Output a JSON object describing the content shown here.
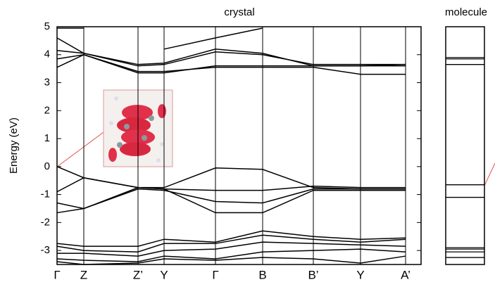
{
  "chart_data": [
    {
      "type": "line",
      "title": "crystal",
      "ylabel": "Energy (eV)",
      "color": "#000000",
      "x": [
        0,
        38,
        115,
        152,
        225,
        292,
        364,
        431,
        495
      ],
      "xlim": [
        0,
        517
      ],
      "xticks": [
        {
          "value": 0,
          "label": "Γ"
        },
        {
          "value": 38,
          "label": "Z"
        },
        {
          "value": 115,
          "label": "Z’"
        },
        {
          "value": 152,
          "label": "Y"
        },
        {
          "value": 225,
          "label": "Γ"
        },
        {
          "value": 292,
          "label": "B"
        },
        {
          "value": 364,
          "label": "B’"
        },
        {
          "value": 431,
          "label": "Y"
        },
        {
          "value": 495,
          "label": "A’"
        }
      ],
      "ylim": [
        -3.5,
        5
      ],
      "yticks": [
        -3,
        -2,
        -1,
        0,
        1,
        2,
        3,
        4,
        5
      ],
      "series": [
        {
          "values": [
            3.55,
            4.0,
            3.35,
            3.35,
            3.6,
            3.6,
            3.6,
            3.6,
            3.65
          ]
        },
        {
          "values": [
            3.85,
            4.0,
            3.4,
            3.4,
            3.55,
            3.55,
            3.55,
            3.3,
            3.3
          ]
        },
        {
          "values": [
            4.15,
            4.05,
            3.6,
            3.65,
            4.1,
            4.0,
            3.65,
            3.65,
            3.65
          ]
        },
        {
          "values": [
            4.6,
            4.05,
            3.65,
            3.7,
            4.2,
            4.05,
            3.6,
            3.6,
            3.6
          ]
        },
        {
          "values": [
            4.95,
            4.95,
            null,
            4.2,
            4.6,
            4.95,
            null,
            null,
            null
          ]
        },
        {
          "values": [
            0,
            -0.4,
            -0.75,
            -0.75,
            -0.05,
            -0.1,
            -0.75,
            -0.8,
            -0.8
          ]
        },
        {
          "values": [
            -0.9,
            -0.4,
            -0.75,
            -0.8,
            -0.85,
            -0.85,
            -0.7,
            -0.75,
            -0.75
          ]
        },
        {
          "values": [
            -1.3,
            -1.5,
            -0.8,
            -0.85,
            -1.25,
            -1.3,
            -0.8,
            -0.8,
            -0.8
          ]
        },
        {
          "values": [
            -1.65,
            -1.5,
            -0.75,
            -0.8,
            -1.65,
            -1.65,
            -0.85,
            -0.85,
            -0.85
          ]
        },
        {
          "values": [
            -2.75,
            -2.85,
            -2.85,
            -2.6,
            -2.7,
            -2.3,
            -2.5,
            -2.6,
            -2.55
          ]
        },
        {
          "values": [
            -2.85,
            -3.0,
            -3.05,
            -2.75,
            -2.75,
            -2.45,
            -2.6,
            -2.7,
            -2.6
          ]
        },
        {
          "values": [
            -3.1,
            -3.1,
            -3.2,
            -3.0,
            -2.95,
            -2.7,
            -2.75,
            -2.8,
            -2.85
          ]
        },
        {
          "values": [
            -3.3,
            -3.35,
            -3.4,
            -3.2,
            -3.3,
            -3.05,
            -3.0,
            -2.95,
            -3.05
          ]
        },
        {
          "values": [
            -3.4,
            -3.5,
            -3.45,
            -3.3,
            -3.35,
            -3.25,
            -3.3,
            -3.45,
            -3.2
          ]
        }
      ]
    },
    {
      "type": "levels",
      "title": "molecule",
      "color": "#000000",
      "ylim": [
        -3.5,
        5
      ],
      "levels": [
        3.9,
        3.85,
        3.65,
        -0.65,
        -1.1,
        -2.9,
        -2.95,
        -3.05,
        -3.25
      ]
    }
  ]
}
